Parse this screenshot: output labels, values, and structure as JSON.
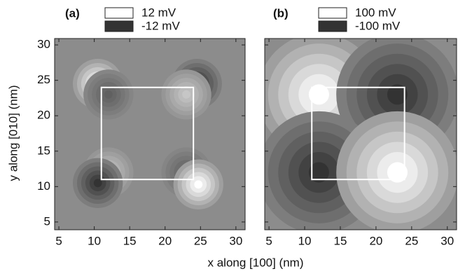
{
  "figure": {
    "xlabel": "x along [100] (nm)",
    "ylabel": "y along [010] (nm)"
  },
  "chart_data": [
    {
      "type": "contour",
      "panel_label": "(a)",
      "background": "#8c8c8c",
      "xlim": [
        4.4,
        31.3
      ],
      "ylim": [
        3.9,
        30.9
      ],
      "xticks": [
        5,
        10,
        15,
        20,
        25,
        30
      ],
      "yticks": [
        5,
        10,
        15,
        20,
        25,
        30
      ],
      "clim": [
        -12,
        12
      ],
      "legend": [
        {
          "name": "12 mV",
          "color": "#ffffff"
        },
        {
          "name": "-12 mV",
          "color": "#333333"
        }
      ],
      "box": {
        "x": [
          11,
          24
        ],
        "y": [
          11,
          24
        ],
        "color": "#ffffff"
      },
      "peaks": {
        "x": [
          10.5,
          12,
          24.5,
          23,
          12,
          10.5,
          23,
          24.7
        ],
        "y": [
          24.5,
          23,
          24.5,
          23,
          12,
          10.5,
          12,
          10.3
        ],
        "values": [
          12,
          -6,
          -12,
          6,
          6,
          -12,
          -6,
          12
        ],
        "sigma": [
          1.4,
          1.4,
          1.4,
          1.4,
          1.4,
          1.4,
          1.4,
          1.4
        ]
      }
    },
    {
      "type": "contour",
      "panel_label": "(b)",
      "background": "#8c8c8c",
      "xlim": [
        4.4,
        31.3
      ],
      "ylim": [
        3.9,
        30.9
      ],
      "xticks": [
        5,
        10,
        15,
        20,
        25,
        30
      ],
      "yticks": [
        5,
        10,
        15,
        20,
        25,
        30
      ],
      "clim": [
        -100,
        100
      ],
      "legend": [
        {
          "name": "100 mV",
          "color": "#ffffff"
        },
        {
          "name": "-100 mV",
          "color": "#333333"
        }
      ],
      "box": {
        "x": [
          11,
          24
        ],
        "y": [
          11,
          24
        ],
        "color": "#ffffff"
      },
      "peaks": {
        "x": [
          12,
          23,
          12,
          23
        ],
        "y": [
          23,
          23,
          12,
          12
        ],
        "values": [
          100,
          -100,
          -100,
          100
        ],
        "sigma": [
          3.4,
          3.4,
          3.4,
          3.4
        ]
      }
    }
  ]
}
